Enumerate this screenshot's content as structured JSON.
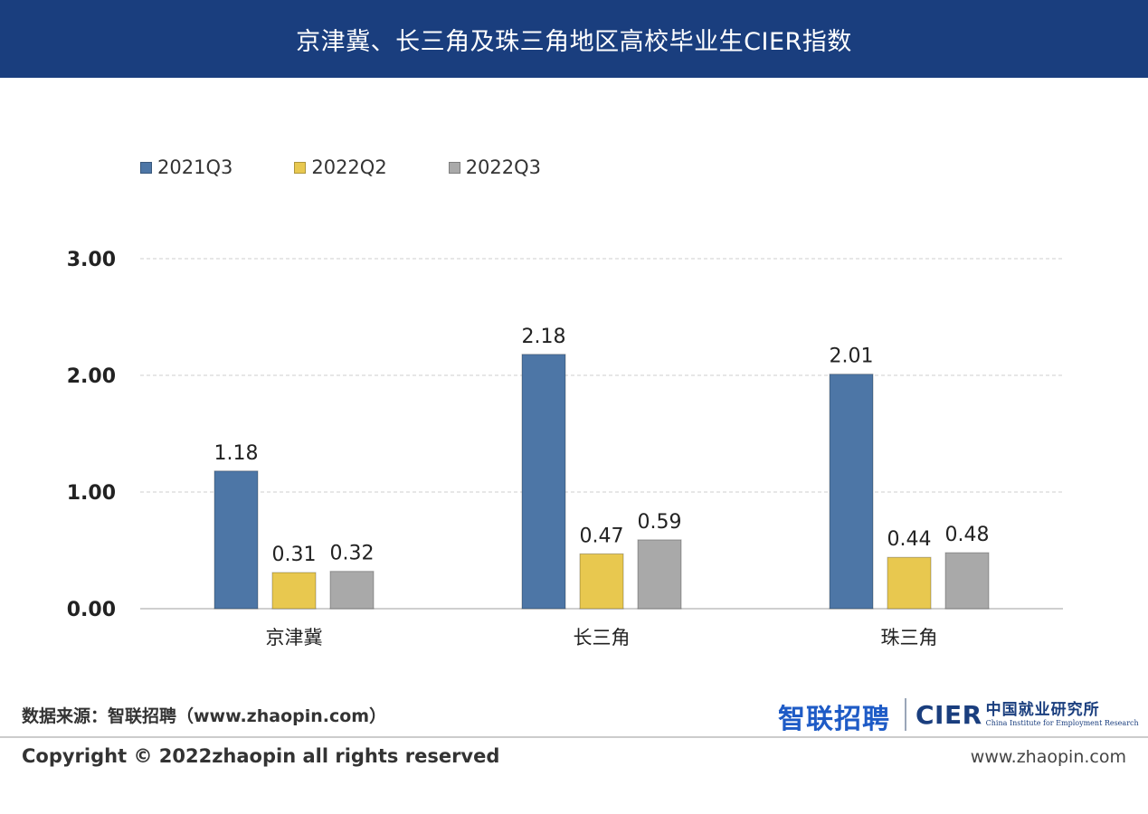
{
  "header": {
    "title": "京津冀、长三角及珠三角地区高校毕业生CIER指数"
  },
  "chart_data": {
    "type": "bar",
    "title": "京津冀、长三角及珠三角地区高校毕业生CIER指数",
    "categories": [
      "京津冀",
      "长三角",
      "珠三角"
    ],
    "series": [
      {
        "name": "2021Q3",
        "color": "#4d76a6",
        "values": [
          1.18,
          2.18,
          2.01
        ]
      },
      {
        "name": "2022Q2",
        "color": "#e8c84f",
        "values": [
          0.31,
          0.47,
          0.44
        ]
      },
      {
        "name": "2022Q3",
        "color": "#a9a9a9",
        "values": [
          0.32,
          0.59,
          0.48
        ]
      }
    ],
    "value_labels": [
      [
        "1.18",
        "2.18",
        "2.01"
      ],
      [
        "0.31",
        "0.47",
        "0.44"
      ],
      [
        "0.32",
        "0.59",
        "0.48"
      ]
    ],
    "ylim": [
      0,
      3
    ],
    "yticks": [
      0,
      1,
      2,
      3
    ],
    "ytick_labels": [
      "0.00",
      "1.00",
      "2.00",
      "3.00"
    ],
    "xlabel": "",
    "ylabel": "",
    "legend_position": "top-left",
    "grid": true
  },
  "footer": {
    "source": "数据来源：智联招聘（www.zhaopin.com）",
    "logo_zhaopin": "智联招聘",
    "logo_cier_mark": "CIER",
    "logo_cier_cn": "中国就业研究所",
    "logo_cier_en": "China Institute for Employment Research",
    "copyright": "Copyright ©  2022zhaopin all rights reserved",
    "website": "www.zhaopin.com"
  }
}
